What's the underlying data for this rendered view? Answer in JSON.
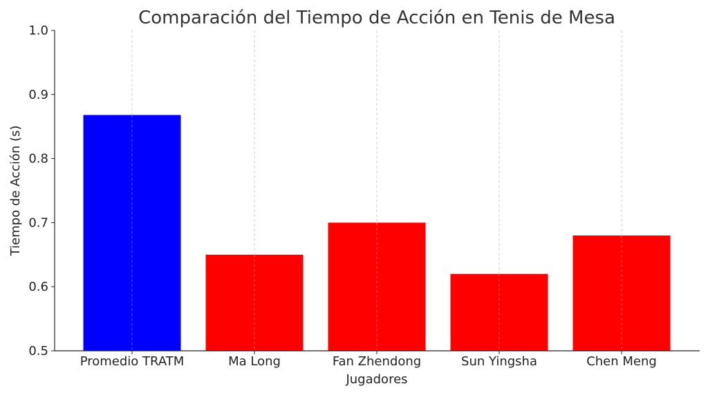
{
  "chart_data": {
    "type": "bar",
    "title": "Comparación del Tiempo de Acción en Tenis de Mesa",
    "xlabel": "Jugadores",
    "ylabel": "Tiempo de Acción (s)",
    "categories": [
      "Promedio TRATM",
      "Ma Long",
      "Fan Zhendong",
      "Sun Yingsha",
      "Chen Meng"
    ],
    "values": [
      0.868,
      0.65,
      0.7,
      0.62,
      0.68
    ],
    "bar_colors": [
      "#0000ff",
      "#ff0000",
      "#ff0000",
      "#ff0000",
      "#ff0000"
    ],
    "ylim": [
      0.5,
      1.0
    ],
    "yticks": [
      "0.5",
      "0.6",
      "0.7",
      "0.8",
      "0.9",
      "1.0"
    ],
    "grid": "vertical dashed",
    "legend": "none"
  }
}
